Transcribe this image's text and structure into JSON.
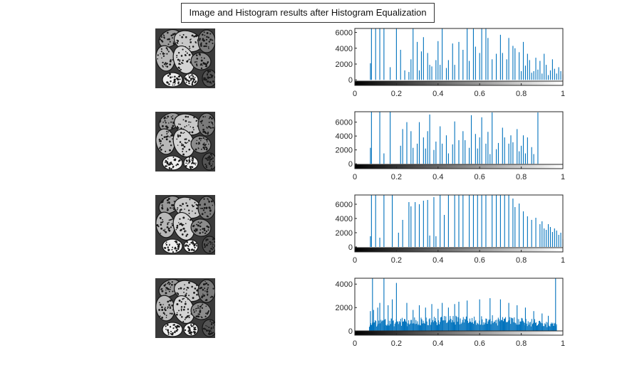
{
  "figure_title": "Image and Histogram results after Histogram Equalization",
  "colors": {
    "bar": "#0072BD",
    "axis": "#262626",
    "text": "#262626"
  },
  "chart_data": [
    {
      "type": "bar",
      "xlim": [
        0,
        1
      ],
      "ylim": [
        -700,
        6500
      ],
      "xticks": [
        0,
        0.2,
        0.4,
        0.6,
        0.8,
        1
      ],
      "xtick_labels": [
        "0",
        "0.2",
        "0.4",
        "0.6",
        "0.8",
        "1"
      ],
      "yticks": [
        0,
        2000,
        4000,
        6000
      ],
      "ytick_labels": [
        "0",
        "2000",
        "4000",
        "6000"
      ],
      "colorbar": "grayscale",
      "spikes": [
        {
          "x": 0.075,
          "y": 2100
        },
        {
          "x": 0.08,
          "y": 6500
        },
        {
          "x": 0.1,
          "y": 6500
        },
        {
          "x": 0.12,
          "y": 6500
        },
        {
          "x": 0.14,
          "y": 6500
        },
        {
          "x": 0.17,
          "y": 1600
        },
        {
          "x": 0.2,
          "y": 6500
        },
        {
          "x": 0.22,
          "y": 3800
        },
        {
          "x": 0.24,
          "y": 1200
        },
        {
          "x": 0.26,
          "y": 1000
        },
        {
          "x": 0.27,
          "y": 2600
        },
        {
          "x": 0.28,
          "y": 6500
        },
        {
          "x": 0.3,
          "y": 4800
        },
        {
          "x": 0.31,
          "y": 1200
        },
        {
          "x": 0.32,
          "y": 3600
        },
        {
          "x": 0.33,
          "y": 5400
        },
        {
          "x": 0.35,
          "y": 3400
        },
        {
          "x": 0.36,
          "y": 1900
        },
        {
          "x": 0.37,
          "y": 1700
        },
        {
          "x": 0.39,
          "y": 2500
        },
        {
          "x": 0.4,
          "y": 4900
        },
        {
          "x": 0.41,
          "y": 1900
        },
        {
          "x": 0.42,
          "y": 6500
        },
        {
          "x": 0.44,
          "y": 1500
        },
        {
          "x": 0.45,
          "y": 2500
        },
        {
          "x": 0.47,
          "y": 4600
        },
        {
          "x": 0.48,
          "y": 1900
        },
        {
          "x": 0.5,
          "y": 4800
        },
        {
          "x": 0.52,
          "y": 3800
        },
        {
          "x": 0.54,
          "y": 6500
        },
        {
          "x": 0.55,
          "y": 2400
        },
        {
          "x": 0.57,
          "y": 6500
        },
        {
          "x": 0.58,
          "y": 4200
        },
        {
          "x": 0.6,
          "y": 3400
        },
        {
          "x": 0.61,
          "y": 6500
        },
        {
          "x": 0.63,
          "y": 6500
        },
        {
          "x": 0.64,
          "y": 5300
        },
        {
          "x": 0.66,
          "y": 2600
        },
        {
          "x": 0.68,
          "y": 3300
        },
        {
          "x": 0.7,
          "y": 5700
        },
        {
          "x": 0.71,
          "y": 3400
        },
        {
          "x": 0.73,
          "y": 2600
        },
        {
          "x": 0.74,
          "y": 5300
        },
        {
          "x": 0.76,
          "y": 4300
        },
        {
          "x": 0.77,
          "y": 4000
        },
        {
          "x": 0.79,
          "y": 3500
        },
        {
          "x": 0.8,
          "y": 1100
        },
        {
          "x": 0.81,
          "y": 4800
        },
        {
          "x": 0.82,
          "y": 1800
        },
        {
          "x": 0.83,
          "y": 3300
        },
        {
          "x": 0.84,
          "y": 2500
        },
        {
          "x": 0.85,
          "y": 900
        },
        {
          "x": 0.86,
          "y": 1100
        },
        {
          "x": 0.87,
          "y": 2800
        },
        {
          "x": 0.88,
          "y": 1300
        },
        {
          "x": 0.89,
          "y": 2400
        },
        {
          "x": 0.9,
          "y": 800
        },
        {
          "x": 0.91,
          "y": 3300
        },
        {
          "x": 0.92,
          "y": 1900
        },
        {
          "x": 0.93,
          "y": 600
        },
        {
          "x": 0.94,
          "y": 1200
        },
        {
          "x": 0.95,
          "y": 2600
        },
        {
          "x": 0.96,
          "y": 1400
        },
        {
          "x": 0.97,
          "y": 800
        },
        {
          "x": 0.98,
          "y": 1600
        },
        {
          "x": 0.99,
          "y": 1100
        },
        {
          "x": 1.0,
          "y": 700
        }
      ]
    },
    {
      "type": "bar",
      "xlim": [
        0,
        1
      ],
      "ylim": [
        -700,
        7500
      ],
      "xticks": [
        0,
        0.2,
        0.4,
        0.6,
        0.8,
        1
      ],
      "xtick_labels": [
        "0",
        "0.2",
        "0.4",
        "0.6",
        "0.8",
        "1"
      ],
      "yticks": [
        0,
        2000,
        4000,
        6000
      ],
      "ytick_labels": [
        "0",
        "2000",
        "4000",
        "6000"
      ],
      "colorbar": "grayscale",
      "spikes": [
        {
          "x": 0.075,
          "y": 2300
        },
        {
          "x": 0.08,
          "y": 7500
        },
        {
          "x": 0.12,
          "y": 7500
        },
        {
          "x": 0.14,
          "y": 1500
        },
        {
          "x": 0.17,
          "y": 7500
        },
        {
          "x": 0.22,
          "y": 2600
        },
        {
          "x": 0.23,
          "y": 5000
        },
        {
          "x": 0.25,
          "y": 6000
        },
        {
          "x": 0.27,
          "y": 4700
        },
        {
          "x": 0.28,
          "y": 2300
        },
        {
          "x": 0.3,
          "y": 2900
        },
        {
          "x": 0.31,
          "y": 6000
        },
        {
          "x": 0.33,
          "y": 3800
        },
        {
          "x": 0.34,
          "y": 2200
        },
        {
          "x": 0.35,
          "y": 4700
        },
        {
          "x": 0.36,
          "y": 7100
        },
        {
          "x": 0.38,
          "y": 2000
        },
        {
          "x": 0.39,
          "y": 3200
        },
        {
          "x": 0.41,
          "y": 5400
        },
        {
          "x": 0.42,
          "y": 2900
        },
        {
          "x": 0.44,
          "y": 4100
        },
        {
          "x": 0.45,
          "y": 1500
        },
        {
          "x": 0.47,
          "y": 2800
        },
        {
          "x": 0.48,
          "y": 6100
        },
        {
          "x": 0.5,
          "y": 3400
        },
        {
          "x": 0.52,
          "y": 4700
        },
        {
          "x": 0.53,
          "y": 3400
        },
        {
          "x": 0.55,
          "y": 2300
        },
        {
          "x": 0.56,
          "y": 7000
        },
        {
          "x": 0.58,
          "y": 4300
        },
        {
          "x": 0.59,
          "y": 2200
        },
        {
          "x": 0.6,
          "y": 3800
        },
        {
          "x": 0.61,
          "y": 6700
        },
        {
          "x": 0.63,
          "y": 2900
        },
        {
          "x": 0.64,
          "y": 4600
        },
        {
          "x": 0.65,
          "y": 1400
        },
        {
          "x": 0.66,
          "y": 7400
        },
        {
          "x": 0.68,
          "y": 2100
        },
        {
          "x": 0.69,
          "y": 3000
        },
        {
          "x": 0.71,
          "y": 5200
        },
        {
          "x": 0.72,
          "y": 3800
        },
        {
          "x": 0.74,
          "y": 2900
        },
        {
          "x": 0.75,
          "y": 4100
        },
        {
          "x": 0.76,
          "y": 3100
        },
        {
          "x": 0.78,
          "y": 5000
        },
        {
          "x": 0.79,
          "y": 1800
        },
        {
          "x": 0.8,
          "y": 2600
        },
        {
          "x": 0.81,
          "y": 4100
        },
        {
          "x": 0.82,
          "y": 1500
        },
        {
          "x": 0.83,
          "y": 3800
        },
        {
          "x": 0.85,
          "y": 2400
        },
        {
          "x": 0.86,
          "y": 1400
        },
        {
          "x": 0.88,
          "y": 7400
        }
      ]
    },
    {
      "type": "bar",
      "xlim": [
        0,
        1
      ],
      "ylim": [
        -700,
        7300
      ],
      "xticks": [
        0,
        0.2,
        0.4,
        0.6,
        0.8,
        1
      ],
      "xtick_labels": [
        "0",
        "0.2",
        "0.4",
        "0.6",
        "0.8",
        "1"
      ],
      "yticks": [
        0,
        2000,
        4000,
        6000
      ],
      "ytick_labels": [
        "0",
        "2000",
        "4000",
        "6000"
      ],
      "colorbar": "grayscale",
      "spikes": [
        {
          "x": 0.075,
          "y": 1500
        },
        {
          "x": 0.08,
          "y": 7300
        },
        {
          "x": 0.1,
          "y": 7300
        },
        {
          "x": 0.12,
          "y": 1300
        },
        {
          "x": 0.14,
          "y": 7300
        },
        {
          "x": 0.18,
          "y": 7300
        },
        {
          "x": 0.21,
          "y": 2000
        },
        {
          "x": 0.23,
          "y": 3800
        },
        {
          "x": 0.26,
          "y": 6300
        },
        {
          "x": 0.27,
          "y": 5700
        },
        {
          "x": 0.29,
          "y": 6300
        },
        {
          "x": 0.31,
          "y": 6000
        },
        {
          "x": 0.33,
          "y": 6500
        },
        {
          "x": 0.35,
          "y": 6600
        },
        {
          "x": 0.36,
          "y": 1600
        },
        {
          "x": 0.38,
          "y": 7000
        },
        {
          "x": 0.39,
          "y": 1500
        },
        {
          "x": 0.41,
          "y": 7300
        },
        {
          "x": 0.43,
          "y": 4500
        },
        {
          "x": 0.45,
          "y": 7300
        },
        {
          "x": 0.48,
          "y": 7300
        },
        {
          "x": 0.5,
          "y": 7300
        },
        {
          "x": 0.52,
          "y": 7300
        },
        {
          "x": 0.55,
          "y": 7300
        },
        {
          "x": 0.57,
          "y": 7300
        },
        {
          "x": 0.59,
          "y": 7300
        },
        {
          "x": 0.61,
          "y": 7300
        },
        {
          "x": 0.63,
          "y": 7300
        },
        {
          "x": 0.66,
          "y": 7300
        },
        {
          "x": 0.68,
          "y": 7300
        },
        {
          "x": 0.7,
          "y": 7300
        },
        {
          "x": 0.72,
          "y": 7300
        },
        {
          "x": 0.74,
          "y": 7300
        },
        {
          "x": 0.76,
          "y": 6800
        },
        {
          "x": 0.77,
          "y": 5600
        },
        {
          "x": 0.79,
          "y": 6100
        },
        {
          "x": 0.81,
          "y": 5000
        },
        {
          "x": 0.83,
          "y": 4300
        },
        {
          "x": 0.85,
          "y": 3800
        },
        {
          "x": 0.87,
          "y": 4100
        },
        {
          "x": 0.89,
          "y": 3200
        },
        {
          "x": 0.9,
          "y": 3600
        },
        {
          "x": 0.91,
          "y": 2600
        },
        {
          "x": 0.92,
          "y": 2400
        },
        {
          "x": 0.93,
          "y": 3200
        },
        {
          "x": 0.94,
          "y": 2800
        },
        {
          "x": 0.95,
          "y": 2100
        },
        {
          "x": 0.96,
          "y": 2600
        },
        {
          "x": 0.97,
          "y": 2300
        },
        {
          "x": 0.98,
          "y": 1700
        },
        {
          "x": 0.99,
          "y": 2000
        },
        {
          "x": 1.0,
          "y": 1100
        }
      ]
    },
    {
      "type": "bar",
      "xlim": [
        0,
        1
      ],
      "ylim": [
        -350,
        4500
      ],
      "xticks": [
        0,
        0.2,
        0.4,
        0.6,
        0.8,
        1
      ],
      "xtick_labels": [
        "0",
        "0.2",
        "0.4",
        "0.6",
        "0.8",
        "1"
      ],
      "yticks": [
        0,
        2000,
        4000
      ],
      "ytick_labels": [
        "0",
        "2000",
        "4000"
      ],
      "colorbar": "grayscale",
      "density": {
        "start": 0.07,
        "end": 0.97,
        "base": [
          300,
          1000
        ],
        "envelope": [
          [
            0.07,
            1000
          ],
          [
            0.3,
            1200
          ],
          [
            0.45,
            1300
          ],
          [
            0.65,
            1400
          ],
          [
            0.8,
            1200
          ],
          [
            0.97,
            800
          ]
        ]
      },
      "spikes": [
        {
          "x": 0.075,
          "y": 1700
        },
        {
          "x": 0.085,
          "y": 4500
        },
        {
          "x": 0.09,
          "y": 1800
        },
        {
          "x": 0.11,
          "y": 2000
        },
        {
          "x": 0.12,
          "y": 2400
        },
        {
          "x": 0.14,
          "y": 4500
        },
        {
          "x": 0.16,
          "y": 2200
        },
        {
          "x": 0.18,
          "y": 2700
        },
        {
          "x": 0.2,
          "y": 4100
        },
        {
          "x": 0.25,
          "y": 2400
        },
        {
          "x": 0.28,
          "y": 1800
        },
        {
          "x": 0.31,
          "y": 2200
        },
        {
          "x": 0.34,
          "y": 2000
        },
        {
          "x": 0.37,
          "y": 2300
        },
        {
          "x": 0.4,
          "y": 1900
        },
        {
          "x": 0.42,
          "y": 2400
        },
        {
          "x": 0.45,
          "y": 2000
        },
        {
          "x": 0.48,
          "y": 2300
        },
        {
          "x": 0.5,
          "y": 2500
        },
        {
          "x": 0.54,
          "y": 2600
        },
        {
          "x": 0.6,
          "y": 2700
        },
        {
          "x": 0.65,
          "y": 2800
        },
        {
          "x": 0.7,
          "y": 2700
        },
        {
          "x": 0.74,
          "y": 2400
        },
        {
          "x": 0.78,
          "y": 2200
        },
        {
          "x": 0.82,
          "y": 2000
        },
        {
          "x": 0.86,
          "y": 1700
        },
        {
          "x": 0.9,
          "y": 1500
        },
        {
          "x": 0.93,
          "y": 1300
        },
        {
          "x": 0.965,
          "y": 4500
        }
      ]
    }
  ]
}
